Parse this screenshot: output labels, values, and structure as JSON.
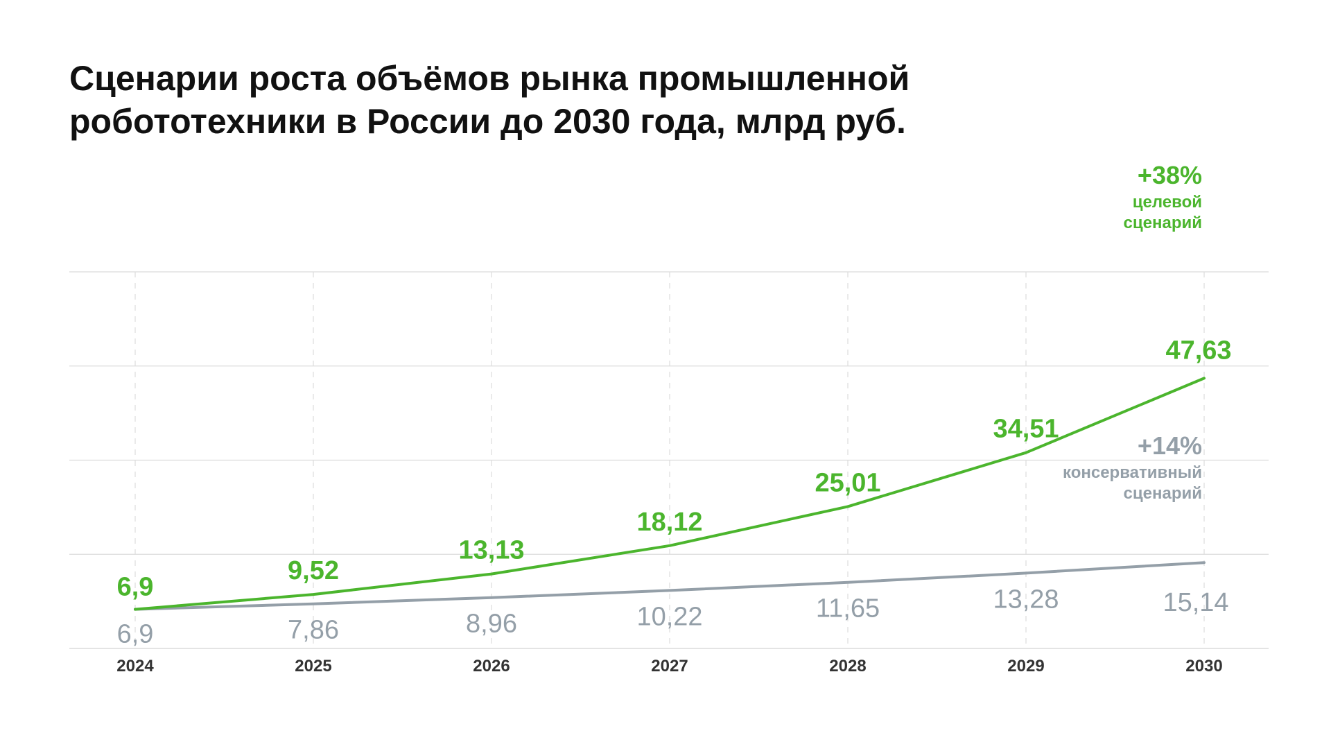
{
  "title_lines": [
    "Сценарии роста объёмов рынка промышленной",
    "робототехники в России до 2030 года, млрд руб."
  ],
  "colors": {
    "target": "#4bb52d",
    "conservative": "#949fa8",
    "grid": "#dcdcdc",
    "axis_text": "#333333"
  },
  "chart_data": {
    "type": "line",
    "x": [
      "2024",
      "2025",
      "2026",
      "2027",
      "2028",
      "2029",
      "2030"
    ],
    "series": [
      {
        "key": "target",
        "values": [
          6.9,
          9.52,
          13.13,
          18.12,
          25.01,
          34.51,
          47.63
        ],
        "labels": [
          "6,9",
          "9,52",
          "13,13",
          "18,12",
          "25,01",
          "34,51",
          "47,63"
        ],
        "growth": "+38%",
        "caption_lines": [
          "целевой",
          "сценарий"
        ]
      },
      {
        "key": "conservative",
        "values": [
          6.9,
          7.86,
          8.96,
          10.22,
          11.65,
          13.28,
          15.14
        ],
        "labels": [
          "6,9",
          "7,86",
          "8,96",
          "10,22",
          "11,65",
          "13,28",
          "15,14"
        ],
        "growth": "+14%",
        "caption_lines": [
          "консервативный",
          "сценарий"
        ]
      }
    ],
    "ylim": [
      0,
      52
    ],
    "grid": true,
    "gridlines": 4
  }
}
